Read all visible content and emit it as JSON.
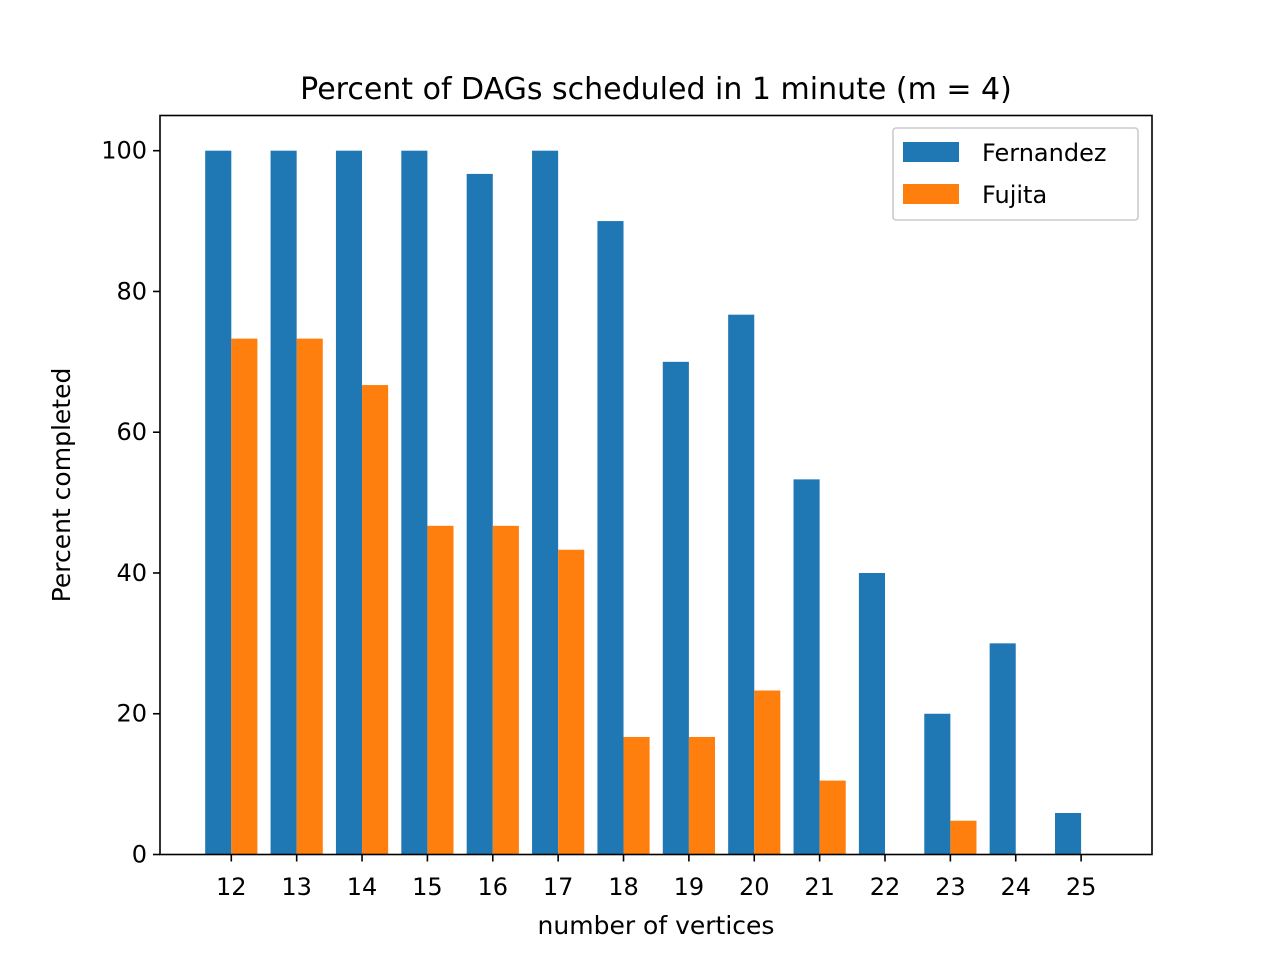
{
  "chart_data": {
    "type": "bar",
    "title": "Percent of DAGs scheduled in 1 minute (m = 4)",
    "xlabel": "number of vertices",
    "ylabel": "Percent completed",
    "categories": [
      "12",
      "13",
      "14",
      "15",
      "16",
      "17",
      "18",
      "19",
      "20",
      "21",
      "22",
      "23",
      "24",
      "25"
    ],
    "series": [
      {
        "name": "Fernandez",
        "color": "#1f77b4",
        "values": [
          100,
          100,
          100,
          100,
          96.7,
          100,
          90,
          70,
          76.7,
          53.3,
          40,
          20,
          30,
          5.9
        ]
      },
      {
        "name": "Fujita",
        "color": "#ff7f0e",
        "values": [
          73.3,
          73.3,
          66.7,
          46.7,
          46.7,
          43.3,
          16.7,
          16.7,
          23.3,
          10.5,
          0,
          4.8,
          0,
          0
        ]
      }
    ],
    "yticks": [
      0,
      20,
      40,
      60,
      80,
      100
    ],
    "ylim": [
      0,
      105
    ],
    "legend_position": "top-right",
    "grid": false
  }
}
